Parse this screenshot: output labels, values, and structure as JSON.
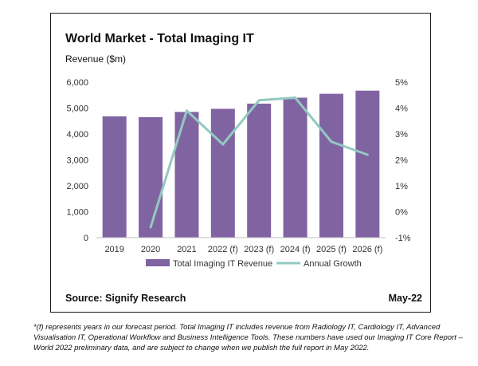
{
  "chart_data": {
    "type": "bar",
    "title": "World Market - Total Imaging IT",
    "ylabel": "Revenue ($m)",
    "categories": [
      "2019",
      "2020",
      "2021",
      "2022 (f)",
      "2023 (f)",
      "2024 (f)",
      "2025 (f)",
      "2026 (f)"
    ],
    "ylim": [
      0,
      6000
    ],
    "yticks": [
      "0",
      "1,000",
      "2,000",
      "3,000",
      "4,000",
      "5,000",
      "6,000"
    ],
    "y2lim": [
      -1,
      5
    ],
    "y2ticks": [
      "-1%",
      "0%",
      "1%",
      "2%",
      "3%",
      "4%",
      "5%"
    ],
    "grid": false,
    "legend_position": "bottom",
    "series": [
      {
        "name": "Total Imaging IT Revenue",
        "type": "bar",
        "axis": "left",
        "color": "#8064a2",
        "values": [
          4680,
          4650,
          4850,
          4970,
          5170,
          5400,
          5550,
          5670
        ]
      },
      {
        "name": "Annual Growth",
        "type": "line",
        "axis": "right",
        "color": "#93c9c0",
        "values": [
          null,
          -0.6,
          3.9,
          2.6,
          4.3,
          4.4,
          2.7,
          2.2
        ]
      }
    ]
  },
  "source": "Source: Signify Research",
  "date": "May-22",
  "footnote": "*(f) represents years in our forecast period. Total Imaging IT includes revenue from Radiology IT, Cardiology IT, Advanced Visualisation IT, Operational Workflow and Business Intelligence Tools. These numbers have used our Imaging IT Core Report – World 2022 preliminary data, and are subject to change when we publish the full report in May 2022."
}
